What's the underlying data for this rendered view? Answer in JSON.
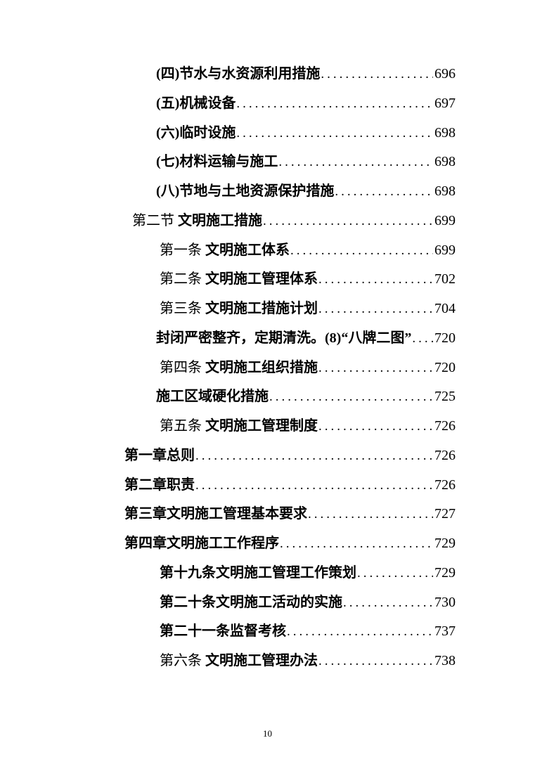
{
  "toc": {
    "entries": [
      {
        "level": 3,
        "prefix": "",
        "title": "(四)节水与水资源利用措施",
        "page": "696"
      },
      {
        "level": 3,
        "prefix": "",
        "title": "(五)机械设备",
        "page": "697"
      },
      {
        "level": 3,
        "prefix": "",
        "title": "(六)临时设施",
        "page": "698"
      },
      {
        "level": 3,
        "prefix": "",
        "title": "(七)材料运输与施工",
        "page": "698"
      },
      {
        "level": 3,
        "prefix": "",
        "title": "(八)节地与土地资源保护措施",
        "page": "698"
      },
      {
        "level": 2,
        "prefix": "第二节 ",
        "title": "文明施工措施",
        "page": "699"
      },
      {
        "level": 4,
        "prefix": "第一条 ",
        "title": "文明施工体系",
        "page": "699"
      },
      {
        "level": 4,
        "prefix": "第二条 ",
        "title": "文明施工管理体系",
        "page": "702"
      },
      {
        "level": 4,
        "prefix": "第三条 ",
        "title": "文明施工措施计划",
        "page": "704"
      },
      {
        "level": 3,
        "prefix": "",
        "title": "封闭严密整齐，定期清洗。(8)“八牌二图”",
        "page": "720"
      },
      {
        "level": 4,
        "prefix": "第四条 ",
        "title": "文明施工组织措施",
        "page": "720"
      },
      {
        "level": 3,
        "prefix": "",
        "title": "施工区域硬化措施",
        "page": "725"
      },
      {
        "level": 4,
        "prefix": "第五条 ",
        "title": "文明施工管理制度",
        "page": "726"
      },
      {
        "level": 1,
        "prefix": "",
        "title": "第一章总则",
        "page": "726"
      },
      {
        "level": 1,
        "prefix": "",
        "title": "第二章职责",
        "page": "726"
      },
      {
        "level": 1,
        "prefix": "",
        "title": "第三章文明施工管理基本要求",
        "page": "727"
      },
      {
        "level": 1,
        "prefix": "",
        "title": "第四章文明施工工作程序",
        "page": "729"
      },
      {
        "level": 4,
        "prefix": "",
        "title": "第十九条文明施工管理工作策划",
        "page": "729"
      },
      {
        "level": 4,
        "prefix": "",
        "title": "第二十条文明施工活动的实施",
        "page": "730"
      },
      {
        "level": 4,
        "prefix": "",
        "title": "第二十一条监督考核",
        "page": "737"
      },
      {
        "level": 4,
        "prefix": "第六条 ",
        "title": "文明施工管理办法",
        "page": "738"
      }
    ]
  },
  "footer": {
    "page_number": "10"
  }
}
